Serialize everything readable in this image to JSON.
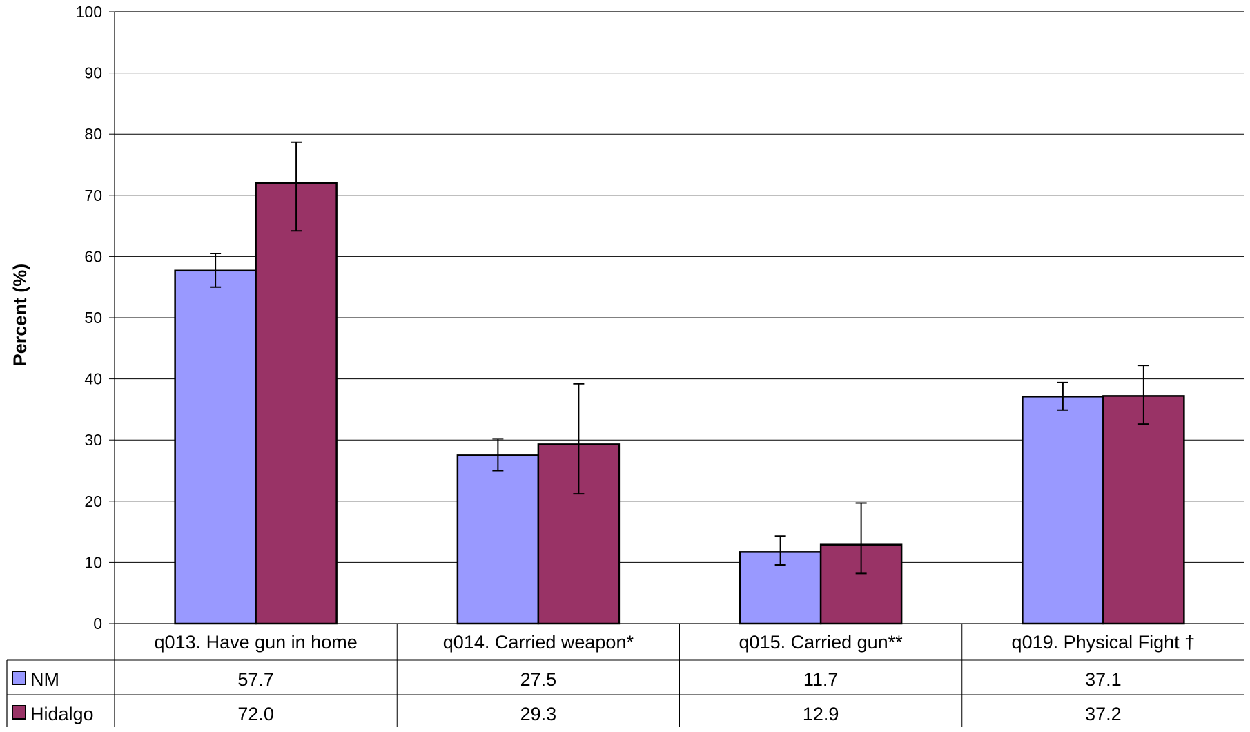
{
  "chart_data": {
    "type": "bar",
    "title": "",
    "xlabel": "",
    "ylabel": "Percent (%)",
    "ylim": [
      0,
      100
    ],
    "yticks": [
      0,
      10,
      20,
      30,
      40,
      50,
      60,
      70,
      80,
      90,
      100
    ],
    "grid": true,
    "legend": "data-table-rows",
    "categories": [
      "q013. Have gun in home",
      "q014. Carried weapon*",
      "q015. Carried gun**",
      "q019. Physical Fight †"
    ],
    "series": [
      {
        "name": "NM",
        "color": "#9999ff",
        "values": [
          57.7,
          27.5,
          11.7,
          37.1
        ],
        "labels": [
          "57.7",
          "27.5",
          "11.7",
          "37.1"
        ],
        "error_low": [
          55.0,
          25.0,
          9.6,
          34.9
        ],
        "error_high": [
          60.5,
          30.2,
          14.3,
          39.4
        ]
      },
      {
        "name": "Hidalgo",
        "color": "#993366",
        "values": [
          72.0,
          29.3,
          12.9,
          37.2
        ],
        "labels": [
          "72.0",
          "29.3",
          "12.9",
          "37.2"
        ],
        "error_low": [
          64.2,
          21.2,
          8.2,
          32.6
        ],
        "error_high": [
          78.7,
          39.2,
          19.7,
          42.2
        ]
      }
    ]
  }
}
